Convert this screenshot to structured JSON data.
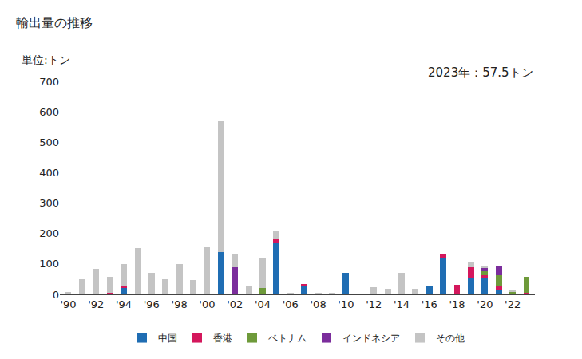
{
  "chart_data": {
    "type": "bar",
    "title": "輸出量の推移",
    "y_axis_label": "単位:トン",
    "annotation": "2023年：57.5トン",
    "categories": [
      "'90",
      null,
      "'92",
      null,
      "'94",
      null,
      "'96",
      null,
      "'98",
      null,
      "'00",
      null,
      "'02",
      null,
      "'04",
      null,
      "'06",
      null,
      "'08",
      null,
      "'10",
      null,
      "'12",
      null,
      "'14",
      null,
      "'16",
      null,
      "'18",
      null,
      "'20",
      null,
      "'22",
      null
    ],
    "series": [
      {
        "name": "中国",
        "color": "#1f6db3",
        "values": [
          0,
          0,
          0,
          0,
          22,
          0,
          0,
          0,
          0,
          0,
          0,
          140,
          0,
          0,
          0,
          170,
          0,
          30,
          0,
          0,
          72,
          0,
          0,
          0,
          0,
          0,
          25,
          120,
          0,
          55,
          55,
          15,
          0,
          0
        ]
      },
      {
        "name": "香港",
        "color": "#d4175c",
        "values": [
          2,
          3,
          3,
          5,
          7,
          3,
          0,
          0,
          0,
          0,
          0,
          0,
          0,
          2,
          0,
          10,
          3,
          5,
          0,
          4,
          0,
          0,
          3,
          0,
          0,
          0,
          0,
          15,
          32,
          33,
          8,
          12,
          5,
          4
        ]
      },
      {
        "name": "ベトナム",
        "color": "#6e9a3a",
        "values": [
          0,
          0,
          0,
          0,
          0,
          0,
          0,
          0,
          0,
          0,
          0,
          0,
          0,
          0,
          20,
          0,
          0,
          0,
          0,
          0,
          0,
          0,
          0,
          0,
          0,
          0,
          0,
          0,
          0,
          0,
          12,
          35,
          5,
          53.5
        ]
      },
      {
        "name": "インドネシア",
        "color": "#7b2d9c",
        "values": [
          0,
          0,
          0,
          0,
          0,
          0,
          0,
          0,
          0,
          0,
          0,
          0,
          90,
          0,
          0,
          0,
          0,
          0,
          0,
          0,
          0,
          0,
          0,
          0,
          0,
          0,
          0,
          0,
          0,
          0,
          13,
          30,
          0,
          0
        ]
      },
      {
        "name": "その他",
        "color": "#c4c4c4",
        "values": [
          5,
          47,
          82,
          52,
          71,
          149,
          70,
          50,
          100,
          47,
          155,
          430,
          42,
          23,
          100,
          27,
          1,
          0,
          5,
          1,
          0,
          0,
          20,
          18,
          70,
          18,
          0,
          0,
          0,
          20,
          5,
          0,
          3,
          0
        ]
      }
    ],
    "stacked": true,
    "ylim": [
      0,
      700
    ],
    "yticks": [
      0,
      100,
      200,
      300,
      400,
      500,
      600,
      700
    ],
    "grid": false,
    "legend": "bottom"
  }
}
